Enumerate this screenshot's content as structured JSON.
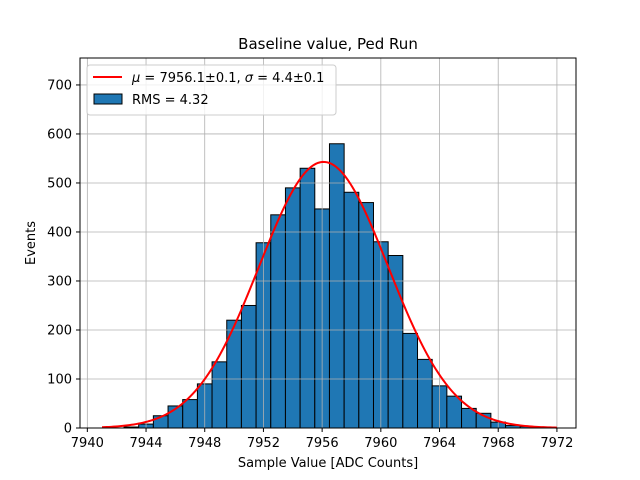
{
  "chart_data": {
    "type": "bar",
    "title": "Baseline value, Ped Run",
    "xlabel": "Sample Value [ADC Counts]",
    "ylabel": "Events",
    "xlim": [
      7939.5,
      7973.3
    ],
    "ylim": [
      0,
      755
    ],
    "xticks": [
      7940,
      7944,
      7948,
      7952,
      7956,
      7960,
      7964,
      7968,
      7972
    ],
    "yticks": [
      0,
      100,
      200,
      300,
      400,
      500,
      600,
      700
    ],
    "grid": true,
    "legend_position": "top-left",
    "bin_width": 1,
    "bins": [
      {
        "x0": 7940.5,
        "value": 0
      },
      {
        "x0": 7941.5,
        "value": 0
      },
      {
        "x0": 7942.5,
        "value": 2
      },
      {
        "x0": 7943.5,
        "value": 8
      },
      {
        "x0": 7944.5,
        "value": 25
      },
      {
        "x0": 7945.5,
        "value": 45
      },
      {
        "x0": 7946.5,
        "value": 58
      },
      {
        "x0": 7947.5,
        "value": 90
      },
      {
        "x0": 7948.5,
        "value": 135
      },
      {
        "x0": 7949.5,
        "value": 220
      },
      {
        "x0": 7950.5,
        "value": 250
      },
      {
        "x0": 7951.5,
        "value": 378
      },
      {
        "x0": 7952.5,
        "value": 435
      },
      {
        "x0": 7953.5,
        "value": 490
      },
      {
        "x0": 7954.5,
        "value": 530
      },
      {
        "x0": 7955.5,
        "value": 447
      },
      {
        "x0": 7956.5,
        "value": 580
      },
      {
        "x0": 7957.5,
        "value": 481
      },
      {
        "x0": 7958.5,
        "value": 460
      },
      {
        "x0": 7959.5,
        "value": 380
      },
      {
        "x0": 7960.5,
        "value": 352
      },
      {
        "x0": 7961.5,
        "value": 193
      },
      {
        "x0": 7962.5,
        "value": 140
      },
      {
        "x0": 7963.5,
        "value": 86
      },
      {
        "x0": 7964.5,
        "value": 65
      },
      {
        "x0": 7965.5,
        "value": 40
      },
      {
        "x0": 7966.5,
        "value": 30
      },
      {
        "x0": 7967.5,
        "value": 12
      },
      {
        "x0": 7968.5,
        "value": 5
      },
      {
        "x0": 7969.5,
        "value": 3
      }
    ],
    "fit": {
      "mu": 7956.1,
      "sigma": 4.4,
      "amplitude": 543,
      "x_range": [
        7941,
        7972
      ]
    },
    "series": [
      {
        "name": "$\\mu = 7956.1{\\pm}0.1$, $\\sigma = 4.4{\\pm}0.1$",
        "type": "line",
        "color": "#ff0000"
      },
      {
        "name": "RMS = 4.32",
        "type": "bar",
        "color": "#1f77b4"
      }
    ],
    "legend": {
      "fit_label_parts": [
        "μ",
        " = 7956.1±0.1, ",
        "σ",
        " = 4.4±0.1"
      ],
      "hist_label": "RMS = 4.32"
    },
    "colors": {
      "bar_fill": "#1f77b4",
      "bar_edge": "#000000",
      "fit_line": "#ff0000",
      "grid": "#b0b0b0"
    }
  }
}
